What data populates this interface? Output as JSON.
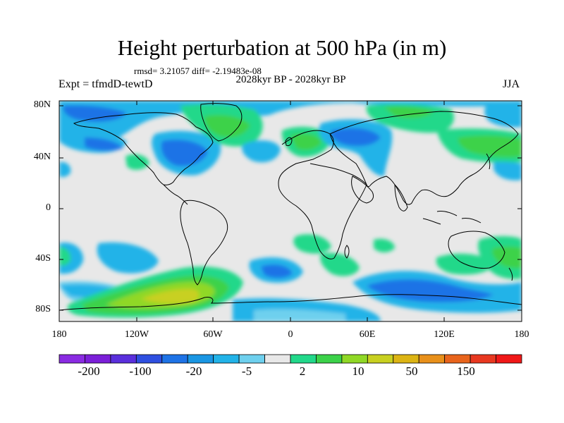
{
  "title": "Height perturbation at 500 hPa (in m)",
  "stats": "rmsd= 3.21057 diff= -2.19483e-08",
  "period": "2028kyr BP - 2028kyr BP",
  "experiment": "Expt = tfmdD-tewtD",
  "season": "JJA",
  "axes": {
    "y_ticks": [
      "80N",
      "40N",
      "0",
      "40S",
      "80S"
    ],
    "x_ticks": [
      "180",
      "120W",
      "60W",
      "0",
      "60E",
      "120E",
      "180"
    ]
  },
  "colorbar": {
    "colors": [
      "#8a2be2",
      "#7b1fd8",
      "#5a2fdc",
      "#2e4fe0",
      "#1e73e6",
      "#1a96e3",
      "#22b3e8",
      "#6ed0ee",
      "#e8e8e8",
      "#22d88a",
      "#3cd24a",
      "#90d826",
      "#c8d020",
      "#dcb414",
      "#e8901a",
      "#e8641c",
      "#e83820",
      "#f01818"
    ],
    "labels": [
      "-200",
      "-100",
      "-20",
      "-5",
      "2",
      "10",
      "50",
      "150"
    ]
  }
}
